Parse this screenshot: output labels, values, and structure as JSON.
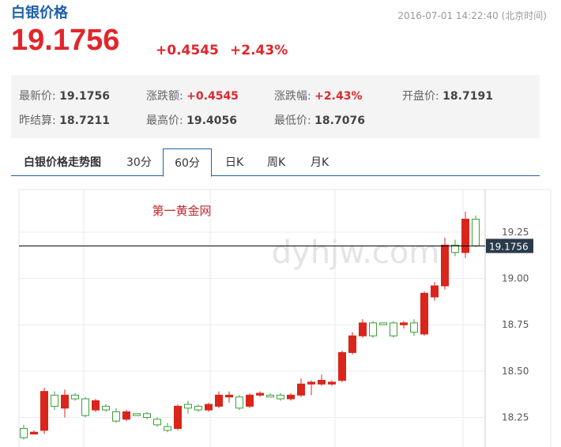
{
  "header": {
    "title": "白银价格",
    "time": "2016-07-01 14:22:40 (北京时间)",
    "price": "19.1756",
    "change": "+0.4545",
    "change_pct": "+2.43%"
  },
  "quote": [
    [
      {
        "label": "最新价:",
        "value": "19.1756"
      },
      {
        "label": "涨跌额:",
        "value": "+0.4545"
      },
      {
        "label": "涨跌幅:",
        "value": "+2.43%"
      },
      {
        "label": "开盘价:",
        "value": "18.7191"
      }
    ],
    [
      {
        "label": "昨结算:",
        "value": "18.7211"
      },
      {
        "label": "最高价:",
        "value": "19.4056"
      },
      {
        "label": "最低价:",
        "value": "18.7076"
      }
    ]
  ],
  "tabs": [
    "白银价格走势图",
    "30分",
    "60分",
    "日K",
    "周K",
    "月K"
  ],
  "chart_data": {
    "type": "candlestick",
    "watermark": "dyhjw.com",
    "annotation": "第一黄金网",
    "up_color": "#d9251c",
    "down_color": "#3aa03a",
    "open": [
      18.19,
      18.16,
      18.18,
      18.37,
      18.3,
      18.37,
      18.35,
      18.29,
      18.31,
      18.28,
      18.24,
      18.27,
      18.27,
      18.24,
      18.2,
      18.19,
      18.32,
      18.31,
      18.29,
      18.31,
      18.36,
      18.36,
      18.31,
      18.37,
      18.37,
      18.37,
      18.35,
      18.37,
      18.43,
      18.43,
      18.43,
      18.45,
      18.6,
      18.69,
      18.76,
      18.76,
      18.76,
      18.75,
      18.76,
      18.7,
      18.9,
      18.96,
      19.18,
      19.14,
      19.32
    ],
    "high": [
      18.21,
      18.18,
      18.41,
      18.39,
      18.4,
      18.38,
      18.36,
      18.35,
      18.32,
      18.3,
      18.29,
      18.27,
      18.28,
      18.25,
      18.22,
      18.32,
      18.34,
      18.32,
      18.33,
      18.39,
      18.39,
      18.37,
      18.38,
      18.39,
      18.38,
      18.38,
      18.38,
      18.46,
      18.45,
      18.48,
      18.45,
      18.61,
      18.71,
      18.78,
      18.77,
      18.76,
      18.77,
      18.77,
      18.78,
      18.93,
      18.98,
      19.22,
      19.21,
      19.36,
      19.34
    ],
    "low": [
      18.13,
      18.16,
      18.16,
      18.29,
      18.25,
      18.34,
      18.25,
      18.28,
      18.28,
      18.22,
      18.23,
      18.26,
      18.24,
      18.2,
      18.17,
      18.18,
      18.27,
      18.28,
      18.28,
      18.3,
      18.33,
      18.29,
      18.3,
      18.36,
      18.36,
      18.34,
      18.34,
      18.36,
      18.37,
      18.42,
      18.42,
      18.44,
      18.59,
      18.68,
      18.68,
      18.75,
      18.68,
      18.73,
      18.69,
      18.69,
      18.88,
      18.94,
      19.12,
      19.11,
      19.17
    ],
    "close": [
      18.14,
      18.17,
      18.39,
      18.31,
      18.37,
      18.35,
      18.26,
      18.34,
      18.29,
      18.23,
      18.28,
      18.26,
      18.25,
      18.21,
      18.18,
      18.31,
      18.3,
      18.29,
      18.32,
      18.37,
      18.37,
      18.3,
      18.37,
      18.38,
      18.36,
      18.35,
      18.37,
      18.43,
      18.44,
      18.45,
      18.44,
      18.6,
      18.69,
      18.76,
      18.69,
      18.75,
      18.69,
      18.76,
      18.71,
      18.92,
      18.96,
      19.18,
      19.14,
      19.32,
      19.1756
    ],
    "last_price": 19.1756,
    "ylim": [
      18.09,
      19.48
    ],
    "yticks": [
      18.25,
      {
        "value": 18.5,
        "label": "18.50"
      },
      18.75,
      {
        "value": 19,
        "label": "19.00"
      },
      19.25
    ],
    "grid": true
  }
}
